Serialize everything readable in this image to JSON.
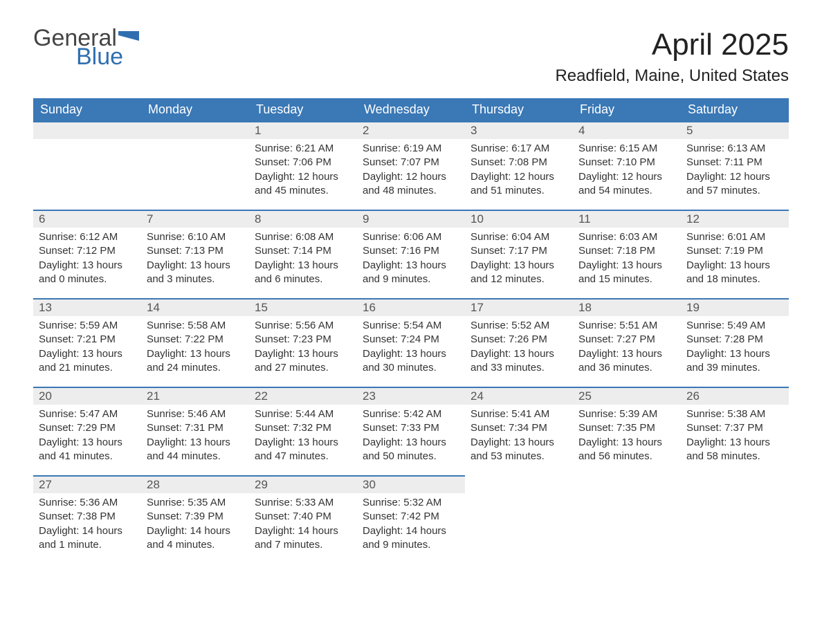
{
  "logo": {
    "word1": "General",
    "word2": "Blue",
    "flag_color": "#2f6fb0"
  },
  "title": "April 2025",
  "location": "Readfield, Maine, United States",
  "colors": {
    "header_bg": "#3a78b6",
    "header_text": "#ffffff",
    "day_divider": "#3a78b6",
    "day_num_bg": "#ededed",
    "body_text": "#333333",
    "page_bg": "#ffffff"
  },
  "typography": {
    "month_title_fontsize": 44,
    "location_fontsize": 24,
    "weekday_header_fontsize": 18,
    "day_number_fontsize": 17,
    "body_fontsize": 15
  },
  "weekdays": [
    "Sunday",
    "Monday",
    "Tuesday",
    "Wednesday",
    "Thursday",
    "Friday",
    "Saturday"
  ],
  "calendar": {
    "first_weekday_index": 2,
    "days": [
      {
        "n": 1,
        "sunrise": "6:21 AM",
        "sunset": "7:06 PM",
        "daylight": "12 hours and 45 minutes."
      },
      {
        "n": 2,
        "sunrise": "6:19 AM",
        "sunset": "7:07 PM",
        "daylight": "12 hours and 48 minutes."
      },
      {
        "n": 3,
        "sunrise": "6:17 AM",
        "sunset": "7:08 PM",
        "daylight": "12 hours and 51 minutes."
      },
      {
        "n": 4,
        "sunrise": "6:15 AM",
        "sunset": "7:10 PM",
        "daylight": "12 hours and 54 minutes."
      },
      {
        "n": 5,
        "sunrise": "6:13 AM",
        "sunset": "7:11 PM",
        "daylight": "12 hours and 57 minutes."
      },
      {
        "n": 6,
        "sunrise": "6:12 AM",
        "sunset": "7:12 PM",
        "daylight": "13 hours and 0 minutes."
      },
      {
        "n": 7,
        "sunrise": "6:10 AM",
        "sunset": "7:13 PM",
        "daylight": "13 hours and 3 minutes."
      },
      {
        "n": 8,
        "sunrise": "6:08 AM",
        "sunset": "7:14 PM",
        "daylight": "13 hours and 6 minutes."
      },
      {
        "n": 9,
        "sunrise": "6:06 AM",
        "sunset": "7:16 PM",
        "daylight": "13 hours and 9 minutes."
      },
      {
        "n": 10,
        "sunrise": "6:04 AM",
        "sunset": "7:17 PM",
        "daylight": "13 hours and 12 minutes."
      },
      {
        "n": 11,
        "sunrise": "6:03 AM",
        "sunset": "7:18 PM",
        "daylight": "13 hours and 15 minutes."
      },
      {
        "n": 12,
        "sunrise": "6:01 AM",
        "sunset": "7:19 PM",
        "daylight": "13 hours and 18 minutes."
      },
      {
        "n": 13,
        "sunrise": "5:59 AM",
        "sunset": "7:21 PM",
        "daylight": "13 hours and 21 minutes."
      },
      {
        "n": 14,
        "sunrise": "5:58 AM",
        "sunset": "7:22 PM",
        "daylight": "13 hours and 24 minutes."
      },
      {
        "n": 15,
        "sunrise": "5:56 AM",
        "sunset": "7:23 PM",
        "daylight": "13 hours and 27 minutes."
      },
      {
        "n": 16,
        "sunrise": "5:54 AM",
        "sunset": "7:24 PM",
        "daylight": "13 hours and 30 minutes."
      },
      {
        "n": 17,
        "sunrise": "5:52 AM",
        "sunset": "7:26 PM",
        "daylight": "13 hours and 33 minutes."
      },
      {
        "n": 18,
        "sunrise": "5:51 AM",
        "sunset": "7:27 PM",
        "daylight": "13 hours and 36 minutes."
      },
      {
        "n": 19,
        "sunrise": "5:49 AM",
        "sunset": "7:28 PM",
        "daylight": "13 hours and 39 minutes."
      },
      {
        "n": 20,
        "sunrise": "5:47 AM",
        "sunset": "7:29 PM",
        "daylight": "13 hours and 41 minutes."
      },
      {
        "n": 21,
        "sunrise": "5:46 AM",
        "sunset": "7:31 PM",
        "daylight": "13 hours and 44 minutes."
      },
      {
        "n": 22,
        "sunrise": "5:44 AM",
        "sunset": "7:32 PM",
        "daylight": "13 hours and 47 minutes."
      },
      {
        "n": 23,
        "sunrise": "5:42 AM",
        "sunset": "7:33 PM",
        "daylight": "13 hours and 50 minutes."
      },
      {
        "n": 24,
        "sunrise": "5:41 AM",
        "sunset": "7:34 PM",
        "daylight": "13 hours and 53 minutes."
      },
      {
        "n": 25,
        "sunrise": "5:39 AM",
        "sunset": "7:35 PM",
        "daylight": "13 hours and 56 minutes."
      },
      {
        "n": 26,
        "sunrise": "5:38 AM",
        "sunset": "7:37 PM",
        "daylight": "13 hours and 58 minutes."
      },
      {
        "n": 27,
        "sunrise": "5:36 AM",
        "sunset": "7:38 PM",
        "daylight": "14 hours and 1 minute."
      },
      {
        "n": 28,
        "sunrise": "5:35 AM",
        "sunset": "7:39 PM",
        "daylight": "14 hours and 4 minutes."
      },
      {
        "n": 29,
        "sunrise": "5:33 AM",
        "sunset": "7:40 PM",
        "daylight": "14 hours and 7 minutes."
      },
      {
        "n": 30,
        "sunrise": "5:32 AM",
        "sunset": "7:42 PM",
        "daylight": "14 hours and 9 minutes."
      }
    ]
  },
  "labels": {
    "sunrise": "Sunrise:",
    "sunset": "Sunset:",
    "daylight": "Daylight:"
  }
}
